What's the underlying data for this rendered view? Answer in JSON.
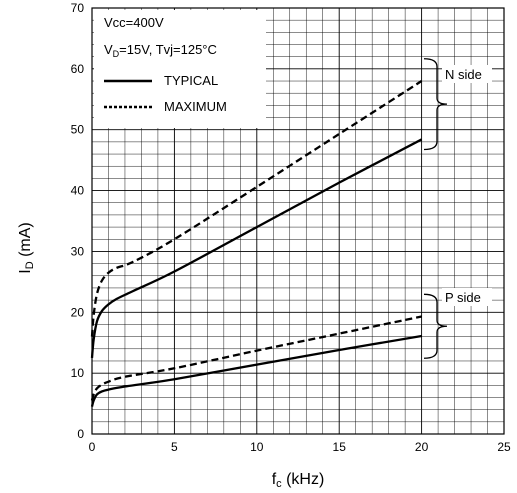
{
  "chart_data": {
    "type": "line",
    "title": "",
    "xlabel": "f",
    "xlabel_sub": "c",
    "xlabel_unit": " (kHz)",
    "ylabel": "I",
    "ylabel_sub": "D",
    "ylabel_unit": " (mA)",
    "xlim": [
      0,
      25
    ],
    "ylim": [
      0,
      70
    ],
    "x_ticks": [
      0,
      5,
      10,
      15,
      20,
      25
    ],
    "y_ticks": [
      0,
      10,
      20,
      30,
      40,
      50,
      60,
      70
    ],
    "grid": true,
    "legend_position": "top-left",
    "conditions": {
      "line1": "Vcc=400V",
      "line2_pre": "V",
      "line2_sub": "D",
      "line2_post": "=15V, Tvj=125°C"
    },
    "series": [
      {
        "name": "TYPICAL",
        "group": "N side",
        "style": "solid",
        "x": [
          0,
          0.1,
          0.3,
          0.6,
          1.0,
          1.5,
          2.5,
          5,
          10,
          15,
          20
        ],
        "y": [
          12.5,
          15.5,
          18.5,
          20.2,
          21.3,
          22.2,
          23.5,
          26.7,
          34.0,
          41.3,
          48.4
        ]
      },
      {
        "name": "MAXIMUM",
        "group": "N side",
        "style": "dashed",
        "x": [
          0,
          0.1,
          0.3,
          0.6,
          1.0,
          1.5,
          2.5,
          5,
          10,
          15,
          20
        ],
        "y": [
          16.0,
          19.5,
          23.0,
          25.2,
          26.5,
          27.3,
          28.3,
          32.0,
          40.6,
          49.3,
          58.0
        ]
      },
      {
        "name": "TYPICAL",
        "group": "P side",
        "style": "solid",
        "x": [
          0,
          0.1,
          0.3,
          0.6,
          1.0,
          2,
          5,
          10,
          15,
          20
        ],
        "y": [
          4.5,
          5.5,
          6.5,
          7.0,
          7.3,
          7.8,
          9.0,
          11.4,
          13.8,
          16.1
        ]
      },
      {
        "name": "MAXIMUM",
        "group": "P side",
        "style": "dashed",
        "x": [
          0,
          0.1,
          0.3,
          0.6,
          1.0,
          2,
          5,
          10,
          15,
          20
        ],
        "y": [
          5.5,
          6.5,
          7.5,
          8.1,
          8.6,
          9.4,
          10.8,
          13.7,
          16.5,
          19.3
        ]
      }
    ],
    "legend": [
      {
        "label": "TYPICAL",
        "style": "solid"
      },
      {
        "label": "MAXIMUM",
        "style": "dashed"
      }
    ],
    "annotations": [
      {
        "text": "N side",
        "y_from": 48.4,
        "y_to": 58.0
      },
      {
        "text": "P side",
        "y_from": 16.1,
        "y_to": 19.3
      }
    ]
  }
}
